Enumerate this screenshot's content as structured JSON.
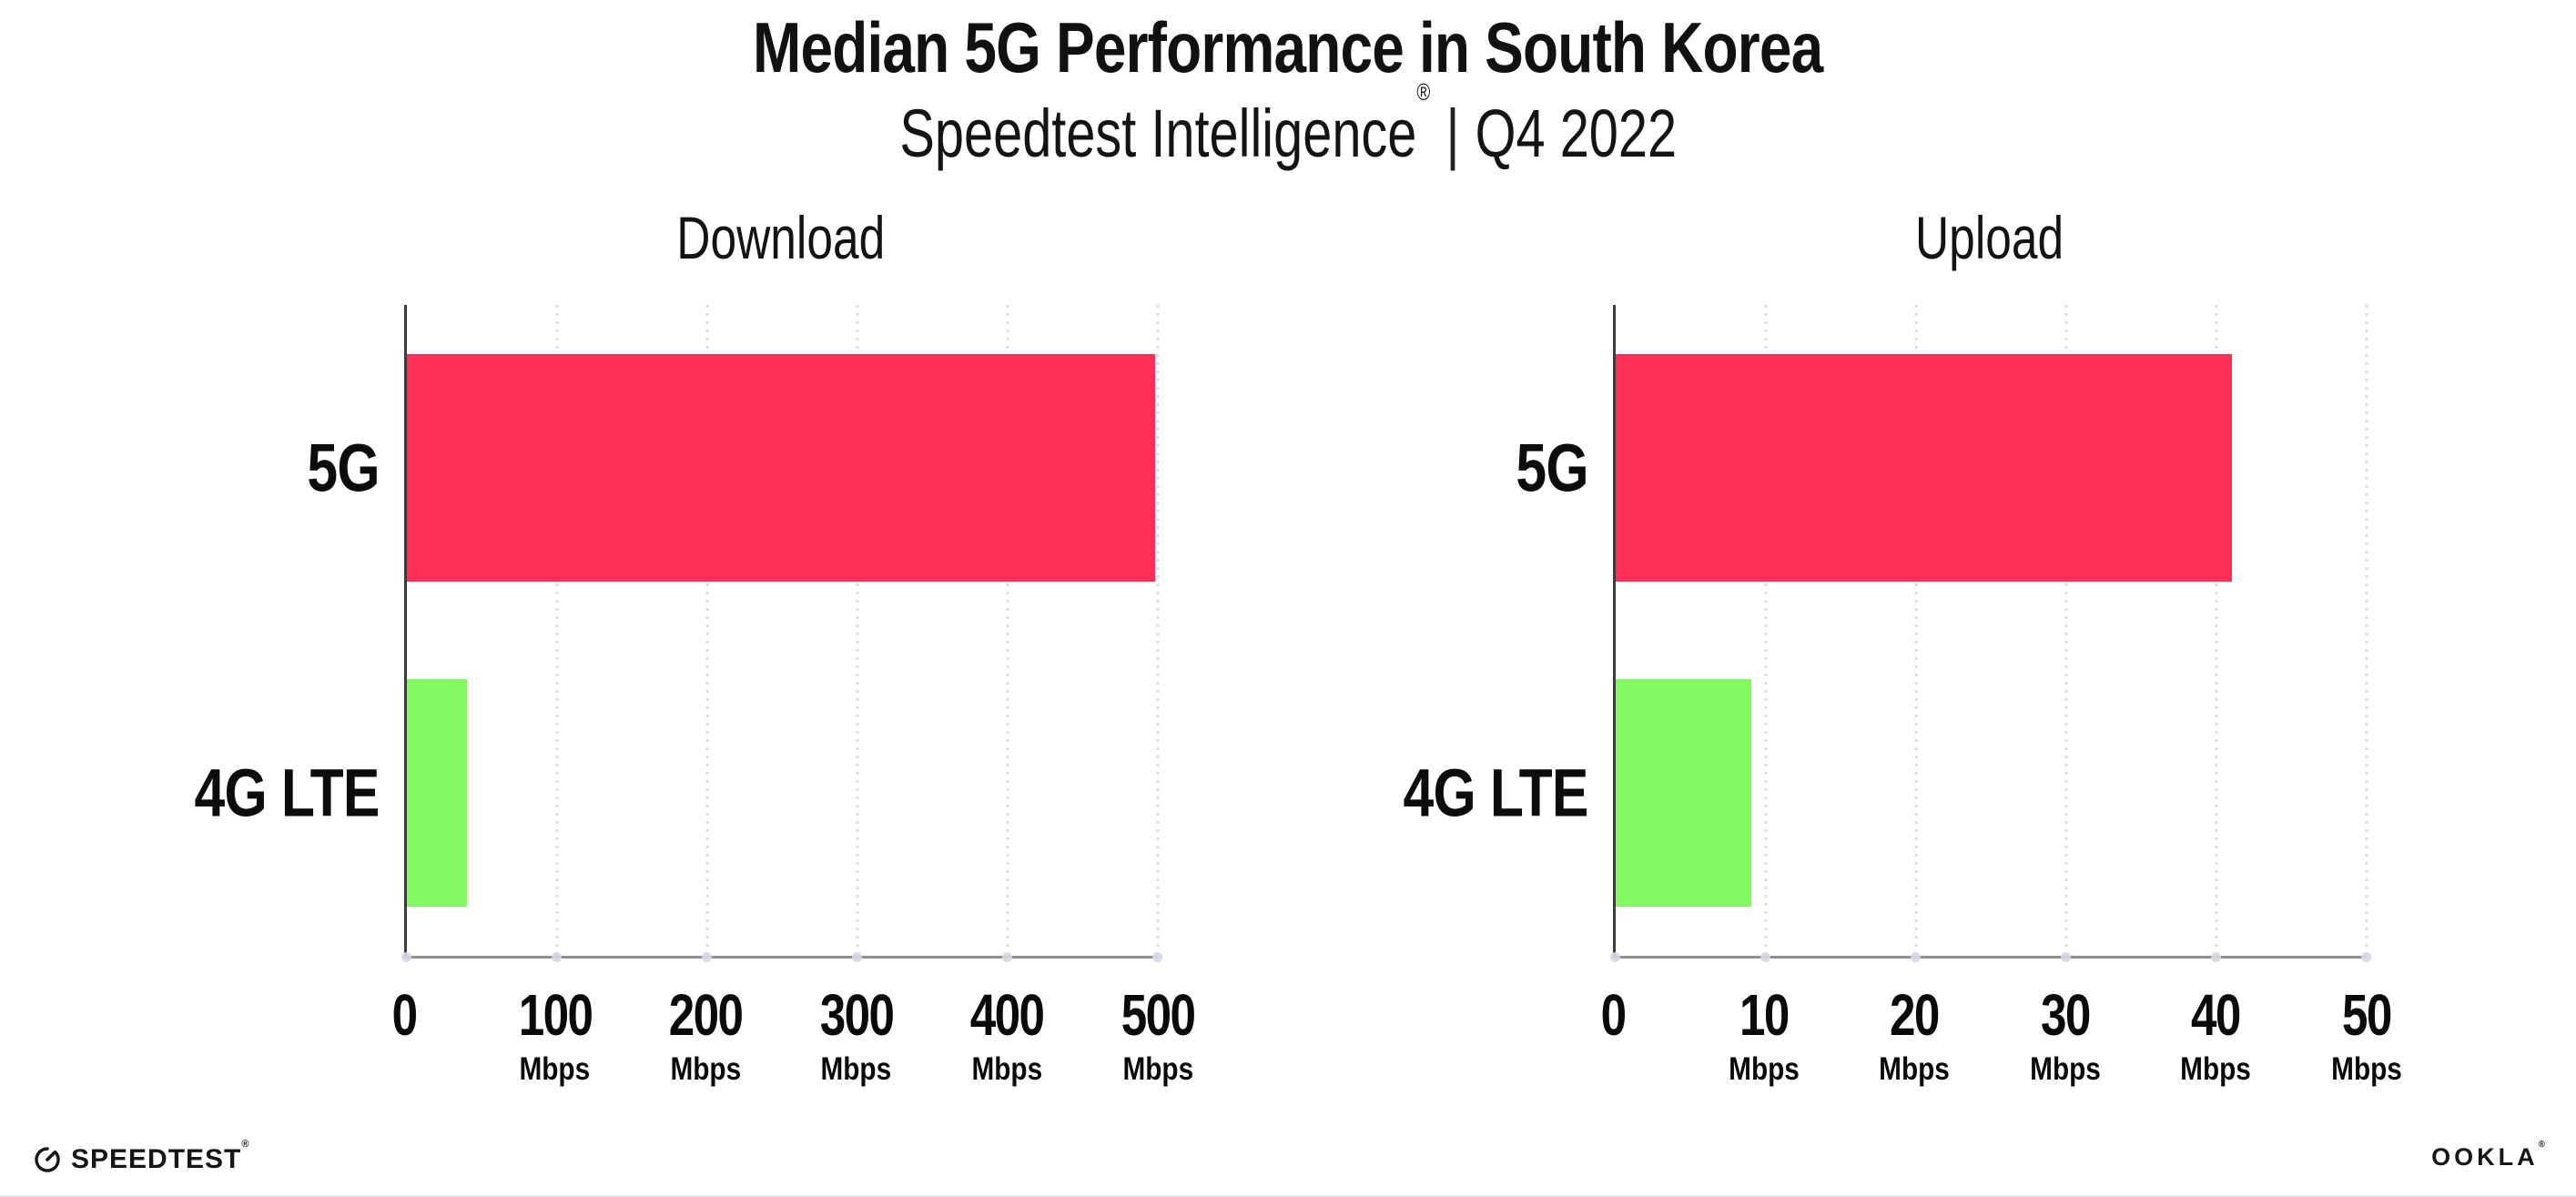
{
  "header": {
    "title": "Median 5G Performance in South Korea",
    "subtitle": {
      "brand": "Speedtest Intelligence",
      "registered_mark": "®",
      "separator": "|",
      "period": "Q4 2022"
    }
  },
  "chart_data": [
    {
      "type": "bar",
      "orientation": "horizontal",
      "title": "Download",
      "categories": [
        "5G",
        "4G LTE"
      ],
      "values": [
        498,
        40
      ],
      "value_unit": "Mbps",
      "xlim": [
        0,
        500
      ],
      "xticks": [
        0,
        100,
        200,
        300,
        400,
        500
      ],
      "xtick_unit": "Mbps",
      "bar_colors": [
        "#FC3056",
        "#83F963"
      ],
      "grid": "vertical-dotted",
      "legend": "none"
    },
    {
      "type": "bar",
      "orientation": "horizontal",
      "title": "Upload",
      "categories": [
        "5G",
        "4G LTE"
      ],
      "values": [
        41,
        9
      ],
      "value_unit": "Mbps",
      "xlim": [
        0,
        50
      ],
      "xticks": [
        0,
        10,
        20,
        30,
        40,
        50
      ],
      "xtick_unit": "Mbps",
      "bar_colors": [
        "#FC3056",
        "#83F963"
      ],
      "grid": "vertical-dotted",
      "legend": "none"
    }
  ],
  "footer": {
    "speedtest_wordmark": "SPEEDTEST",
    "speedtest_mark": "®",
    "ookla_wordmark": "OOKLA",
    "ookla_mark": "®"
  },
  "colors": {
    "bar_5g": "#FC3056",
    "bar_4g_lte": "#83F963",
    "gridline": "#DCDCE8",
    "axis_dot": "#D5D8E6",
    "y_axis": "#3C3C3C",
    "x_axis": "#8F8F8F",
    "text": "#111111",
    "background": "#FFFFFF"
  }
}
